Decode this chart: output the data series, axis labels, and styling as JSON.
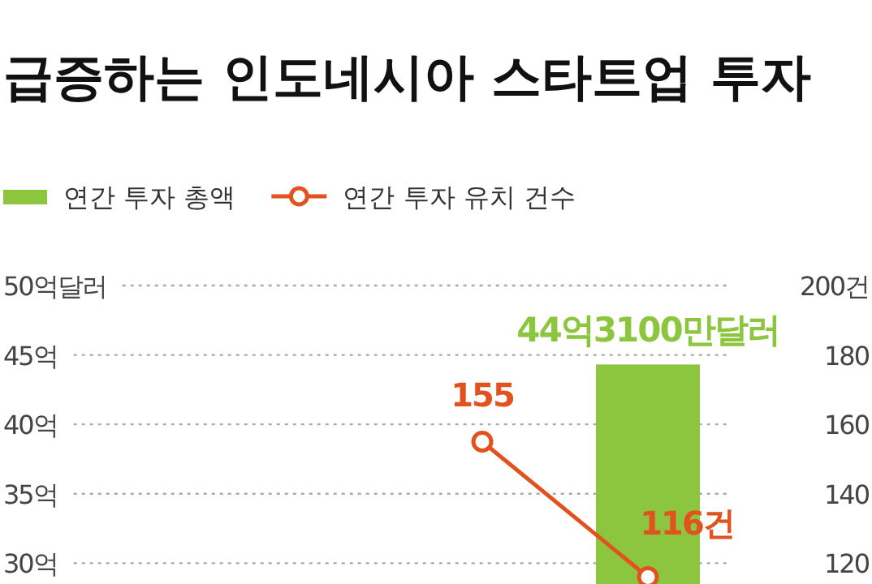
{
  "chart_data": {
    "type": "bar",
    "title": "급증하는 인도네시아 스타트업 투자",
    "categories": [
      null,
      null,
      null,
      null
    ],
    "series": [
      {
        "name": "연간 투자 총액",
        "color": "#8cc63e",
        "values": [
          null,
          null,
          null,
          44.31
        ],
        "value_labels": [
          null,
          null,
          null,
          "44억3100만달러"
        ]
      },
      {
        "name": "연간 투자 유치 건수",
        "type": "line",
        "axis": "y2",
        "color": "#e2521f",
        "values": [
          null,
          null,
          155,
          116
        ],
        "value_labels": [
          null,
          null,
          "155",
          "116건"
        ]
      }
    ],
    "ylim": [
      28.5,
      50
    ],
    "yticks": [
      {
        "value": 50,
        "label": "50억달러"
      },
      {
        "value": 45,
        "label": "45억"
      },
      {
        "value": 40,
        "label": "40억"
      },
      {
        "value": 35,
        "label": "35억"
      },
      {
        "value": 30,
        "label": "30억"
      }
    ],
    "y2lim": [
      114,
      200
    ],
    "y2ticks": [
      {
        "value": 200,
        "label": "200건"
      },
      180,
      160,
      140,
      120
    ],
    "grid": "y",
    "legend": "top left",
    "marker": "circle",
    "line_style": "solid"
  }
}
